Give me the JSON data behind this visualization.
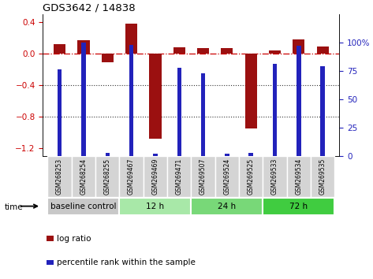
{
  "title": "GDS3642 / 14838",
  "samples": [
    "GSM268253",
    "GSM268254",
    "GSM268255",
    "GSM269467",
    "GSM269469",
    "GSM269471",
    "GSM269507",
    "GSM269524",
    "GSM269525",
    "GSM269533",
    "GSM269534",
    "GSM269535"
  ],
  "log_ratio": [
    0.12,
    0.17,
    -0.11,
    0.38,
    -1.08,
    0.08,
    0.07,
    0.07,
    -0.95,
    0.04,
    0.18,
    0.09
  ],
  "percentile_rank": [
    76,
    100,
    3,
    98,
    2,
    78,
    73,
    2,
    3,
    81,
    97,
    79
  ],
  "groups": [
    {
      "label": "baseline control",
      "start": 0,
      "end": 3
    },
    {
      "label": "12 h",
      "start": 3,
      "end": 6
    },
    {
      "label": "24 h",
      "start": 6,
      "end": 9
    },
    {
      "label": "72 h",
      "start": 9,
      "end": 12
    }
  ],
  "group_colors": [
    "#c8c8c8",
    "#a8e8a8",
    "#78d878",
    "#40cc40"
  ],
  "ylim_left": [
    -1.3,
    0.5
  ],
  "ylim_right": [
    0,
    125
  ],
  "yticks_left": [
    -1.2,
    -0.8,
    -0.4,
    0.0,
    0.4
  ],
  "yticks_right": [
    0,
    25,
    50,
    75,
    100
  ],
  "bar_color_red": "#9B1010",
  "bar_color_blue": "#2222BB",
  "hline_color": "#CC0000",
  "dotted_line_color": "#333333",
  "red_bar_width": 0.5,
  "blue_bar_width": 0.18
}
